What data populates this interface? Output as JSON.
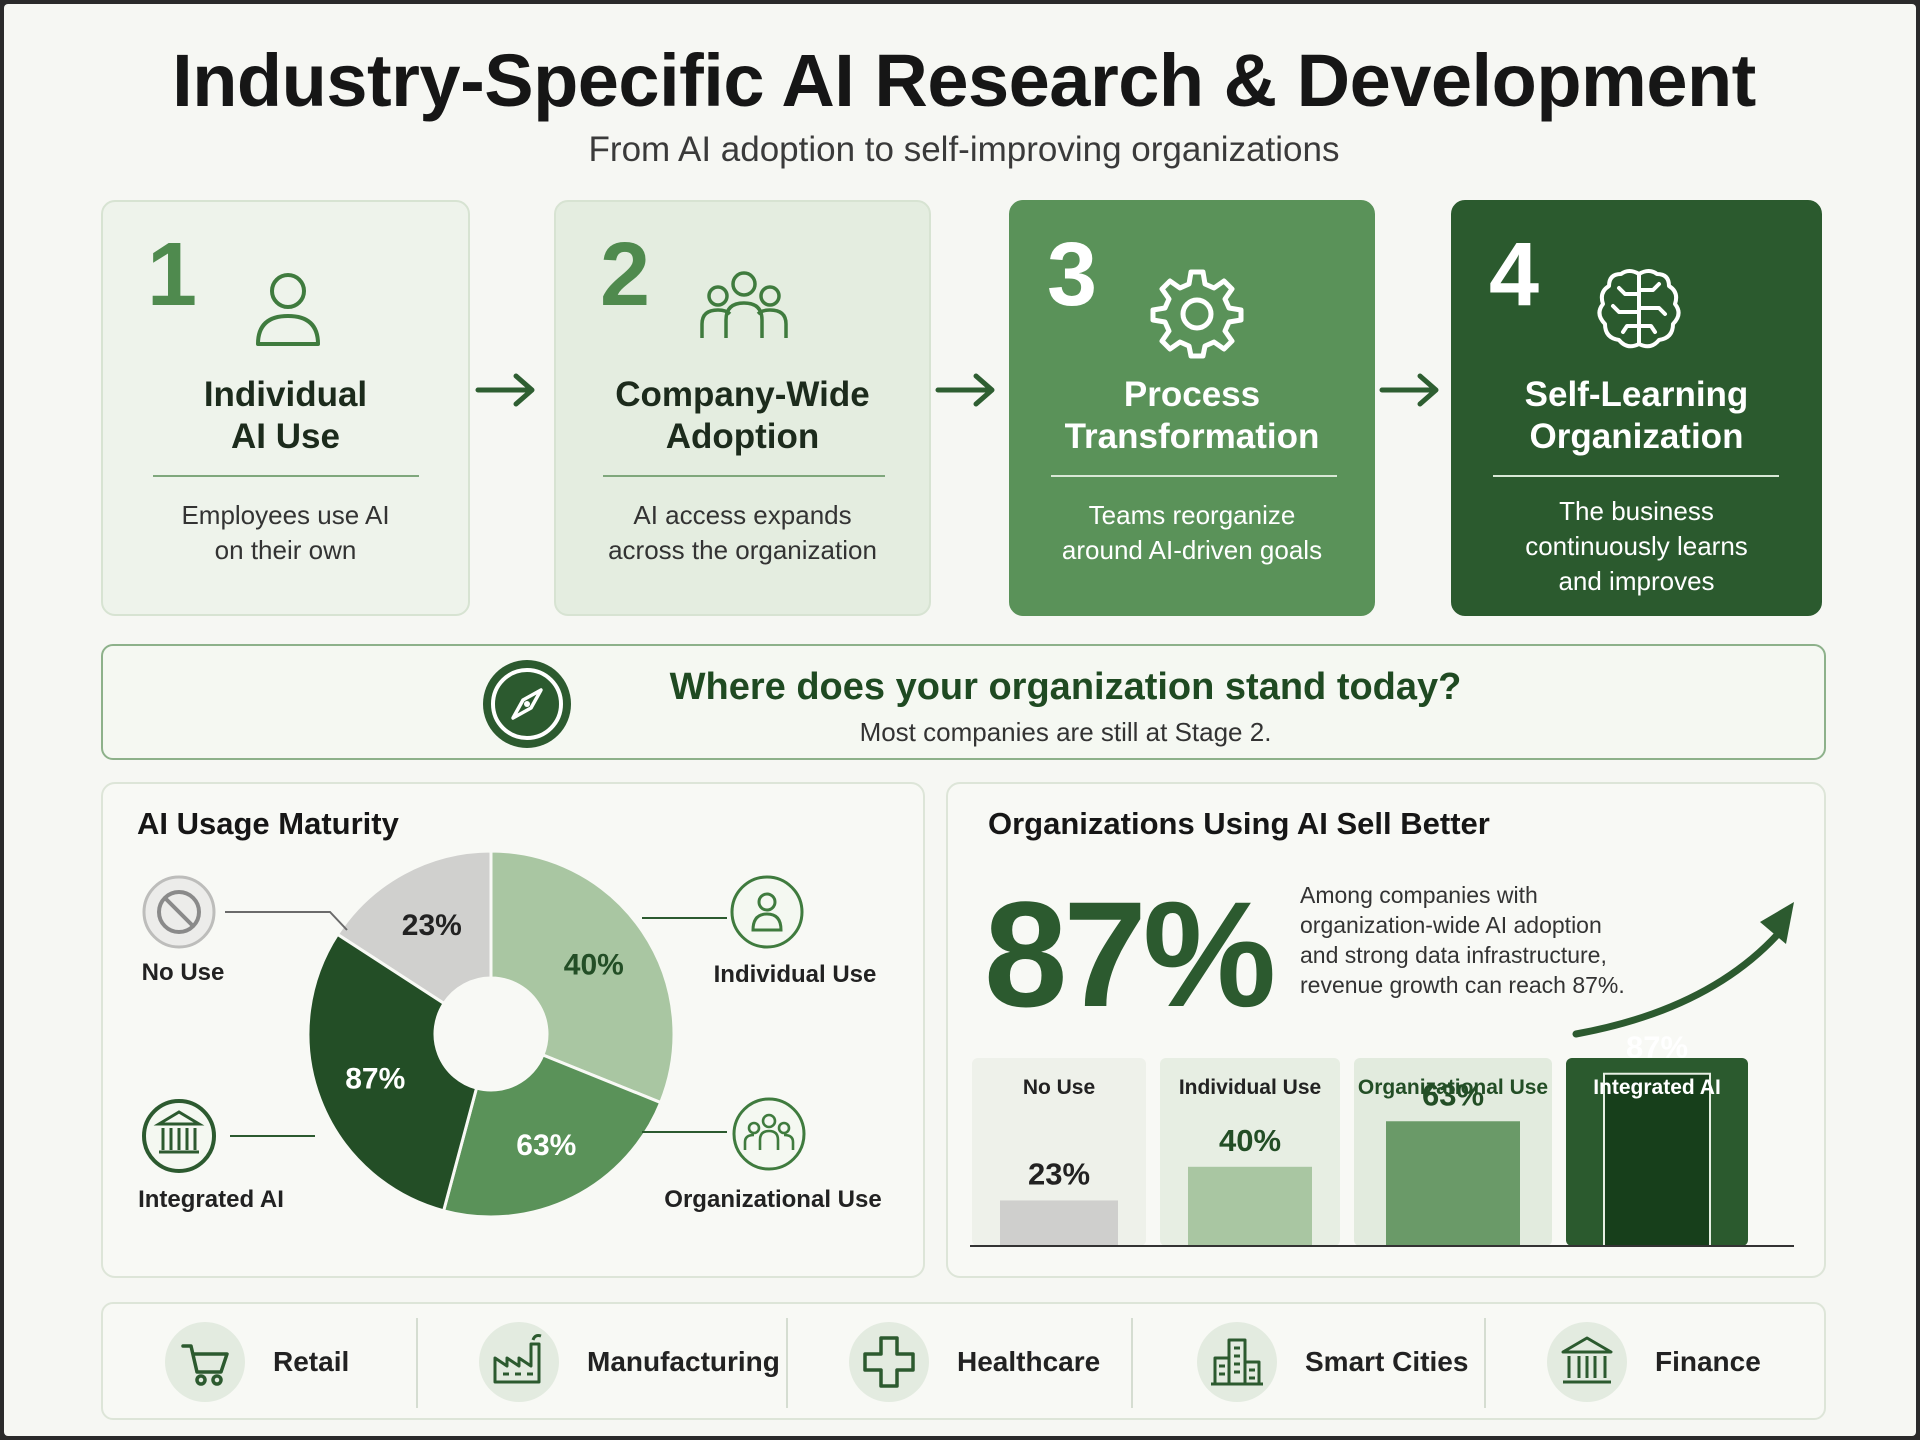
{
  "header": {
    "title": "Industry-Specific AI Research & Development",
    "subtitle": "From AI adoption to self-improving organizations"
  },
  "stages": [
    {
      "number": "1",
      "title_line1": "Individual",
      "title_line2": "AI Use",
      "desc_line1": "Employees use AI",
      "desc_line2": "on their own",
      "desc_line3": "",
      "icon": "person-icon"
    },
    {
      "number": "2",
      "title_line1": "Company-Wide",
      "title_line2": "Adoption",
      "desc_line1": "AI access expands",
      "desc_line2": "across the organization",
      "desc_line3": "",
      "icon": "group-icon"
    },
    {
      "number": "3",
      "title_line1": "Process",
      "title_line2": "Transformation",
      "desc_line1": "Teams reorganize",
      "desc_line2": "around AI-driven goals",
      "desc_line3": "",
      "icon": "gear-icon"
    },
    {
      "number": "4",
      "title_line1": "Self-Learning",
      "title_line2": "Organization",
      "desc_line1": "The business",
      "desc_line2": "continuously learns",
      "desc_line3": "and improves",
      "icon": "brain-icon"
    }
  ],
  "banner": {
    "question": "Where does your organization stand today?",
    "answer": "Most companies are still at Stage 2."
  },
  "maturity": {
    "title": "AI Usage Maturity",
    "labels": {
      "no_use": "No Use",
      "individual": "Individual Use",
      "organizational": "Organizational Use",
      "integrated": "Integrated AI"
    }
  },
  "sales": {
    "title": "Organizations Using AI Sell Better",
    "big_number": "87%",
    "note_line1": "Among companies with",
    "note_line2": "organization-wide AI adoption",
    "note_line3": "and strong data infrastructure,",
    "note_line4": "revenue growth can reach 87%."
  },
  "industries": [
    {
      "label": "Retail",
      "icon": "cart-icon"
    },
    {
      "label": "Manufacturing",
      "icon": "factory-icon"
    },
    {
      "label": "Healthcare",
      "icon": "medical-cross-icon"
    },
    {
      "label": "Smart Cities",
      "icon": "buildings-icon"
    },
    {
      "label": "Finance",
      "icon": "bank-icon"
    }
  ],
  "colors": {
    "light_gray": "#d0d0ce",
    "light_green": "#a9c6a2",
    "mid_green": "#5a9259",
    "dark_green": "#234e26",
    "accent": "#2c5a2f"
  },
  "chart_data": [
    {
      "type": "pie",
      "title": "AI Usage Maturity",
      "categories": [
        "No Use",
        "Individual Use",
        "Organizational Use",
        "Integrated AI"
      ],
      "values": [
        23,
        40,
        63,
        87
      ],
      "value_labels": [
        "23%",
        "40%",
        "63%",
        "87%"
      ],
      "colors": [
        "#d0d0ce",
        "#a9c6a2",
        "#5a9259",
        "#234e26"
      ]
    },
    {
      "type": "bar",
      "title": "Organizations Using AI Sell Better",
      "categories": [
        "No Use",
        "Individual Use",
        "Organizational Use",
        "Integrated AI"
      ],
      "values": [
        23,
        40,
        63,
        87
      ],
      "value_labels": [
        "23%",
        "40%",
        "63%",
        "87%"
      ],
      "ylim": [
        0,
        100
      ],
      "colors": [
        "#cfcfcd",
        "#a9c6a2",
        "#6a9a68",
        "#173f1b"
      ]
    }
  ]
}
